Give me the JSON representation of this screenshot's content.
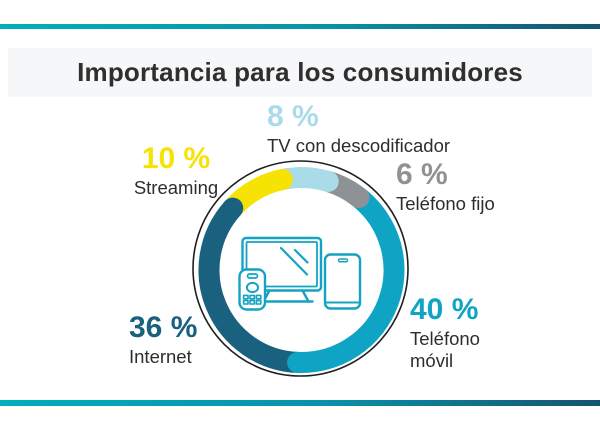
{
  "header": {
    "title": "Importancia para los consumidores"
  },
  "theme": {
    "bar_gradient_left": "#00afba",
    "bar_gradient_mid": "#0991a8",
    "bar_gradient_right": "#15546f",
    "title_band_bg": "#f6f7f8",
    "title_color": "#2f2f2f",
    "label_text_color": "#2d2d2d",
    "outline_color": "#1f1f1f",
    "icon_color": "#14a3c3"
  },
  "chart_data": {
    "type": "pie",
    "subtype": "donut",
    "title": "Importancia para los consumidores",
    "unit": "%",
    "start_angle_deg": -12,
    "clockwise": true,
    "legend_position": "labels-around-donut",
    "center_icon": "tv-remote-smartphone",
    "segments": [
      {
        "label": "TV con descodificador",
        "value": 8,
        "display": "8 %",
        "color": "#a9dce8"
      },
      {
        "label": "Teléfono fijo",
        "value": 6,
        "display": "6 %",
        "color": "#8f9294"
      },
      {
        "label": "Teléfono móvil",
        "value": 40,
        "display": "40 %",
        "color": "#10a4c4"
      },
      {
        "label": "Internet",
        "value": 36,
        "display": "36 %",
        "color": "#1a617f"
      },
      {
        "label": "Streaming",
        "value": 10,
        "display": "10 %",
        "color": "#f6e203"
      }
    ]
  }
}
